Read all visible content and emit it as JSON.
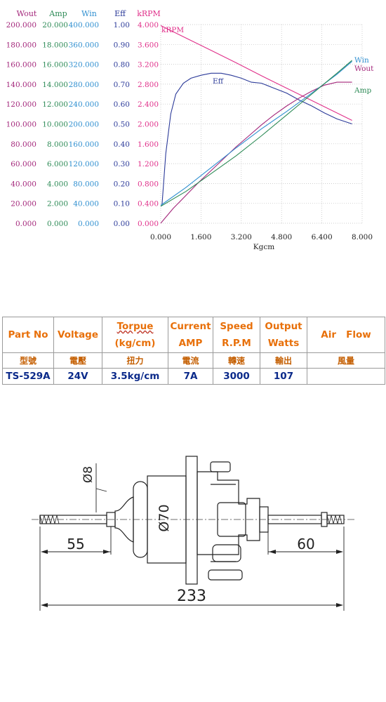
{
  "chart_data": {
    "type": "line",
    "xlabel": "Kgcm",
    "x_ticks": [
      "0.000",
      "1.600",
      "3.200",
      "4.800",
      "6.400",
      "8.000"
    ],
    "xlim": [
      0,
      8
    ],
    "grid": true,
    "axes": [
      {
        "label": "Wout",
        "color": "#a3267a",
        "ticks": [
          "0.000",
          "20.000",
          "40.000",
          "60.000",
          "80.000",
          "100.000",
          "120.000",
          "140.000",
          "160.000",
          "180.000",
          "200.000"
        ],
        "ylim": [
          0,
          200
        ]
      },
      {
        "label": "Amp",
        "color": "#2e8b57",
        "ticks": [
          "0.000",
          "2.000",
          "4.000",
          "6.000",
          "8.000",
          "10.000",
          "12.000",
          "14.000",
          "16.000",
          "18.000",
          "20.000"
        ],
        "ylim": [
          0,
          20
        ]
      },
      {
        "label": "Win",
        "color": "#2f8fd0",
        "ticks": [
          "0.000",
          "40.000",
          "80.000",
          "120.000",
          "160.000",
          "200.000",
          "240.000",
          "280.000",
          "320.000",
          "360.000",
          "400.000"
        ],
        "ylim": [
          0,
          400
        ]
      },
      {
        "label": "Eff",
        "color": "#2b3a99",
        "ticks": [
          "0.00",
          "0.10",
          "0.20",
          "0.30",
          "0.40",
          "0.50",
          "0.60",
          "0.70",
          "0.80",
          "0.90",
          "1.00"
        ],
        "ylim": [
          0,
          1
        ]
      },
      {
        "label": "kRPM",
        "color": "#e0308a",
        "ticks": [
          "0.000",
          "0.400",
          "0.800",
          "1.200",
          "1.600",
          "2.000",
          "2.400",
          "2.800",
          "3.200",
          "3.600",
          "4.000"
        ],
        "ylim": [
          0,
          4
        ]
      }
    ],
    "series": [
      {
        "name": "kRPM",
        "color": "#e0308a",
        "axis": 4,
        "x": [
          0,
          1,
          2,
          3,
          4,
          5,
          6,
          7,
          7.6
        ],
        "y": [
          3.98,
          3.73,
          3.48,
          3.23,
          2.97,
          2.72,
          2.47,
          2.22,
          2.07
        ]
      },
      {
        "name": "Eff",
        "color": "#2b3a99",
        "axis": 3,
        "x": [
          0.05,
          0.2,
          0.4,
          0.6,
          0.9,
          1.2,
          1.6,
          2.0,
          2.4,
          2.8,
          3.2,
          3.6,
          4.0,
          4.5,
          5.0,
          5.5,
          6.0,
          6.5,
          7.0,
          7.6
        ],
        "y": [
          0.09,
          0.35,
          0.55,
          0.65,
          0.705,
          0.73,
          0.745,
          0.755,
          0.755,
          0.745,
          0.73,
          0.71,
          0.705,
          0.68,
          0.655,
          0.62,
          0.59,
          0.555,
          0.525,
          0.5
        ]
      },
      {
        "name": "Wout",
        "color": "#a3267a",
        "axis": 0,
        "x": [
          0,
          0.5,
          1,
          1.5,
          2,
          2.5,
          3,
          3.5,
          4,
          4.5,
          5,
          5.5,
          6,
          6.5,
          7,
          7.6
        ],
        "y": [
          0,
          15,
          28,
          41,
          53,
          65,
          77,
          88,
          99,
          109,
          118,
          126,
          133,
          139,
          142,
          142
        ]
      },
      {
        "name": "Win",
        "color": "#2f8fd0",
        "axis": 2,
        "x": [
          0,
          1,
          2,
          3,
          4,
          5,
          6,
          7,
          7.6
        ],
        "y": [
          36,
          72,
          112,
          152,
          190,
          225,
          262,
          300,
          326
        ]
      },
      {
        "name": "Amp",
        "color": "#2e8b57",
        "axis": 1,
        "x": [
          0,
          1,
          2,
          3,
          4,
          5,
          6,
          7,
          7.6
        ],
        "y": [
          1.7,
          3.2,
          5.0,
          6.8,
          8.8,
          10.9,
          13.0,
          15.1,
          16.4
        ]
      }
    ]
  },
  "table": {
    "headers": [
      {
        "line1": "Part No",
        "line2": ""
      },
      {
        "line1": "Voltage",
        "line2": ""
      },
      {
        "line1": "Torpue",
        "line2": "(kg/cm)"
      },
      {
        "line1": "Current",
        "line2": "AMP"
      },
      {
        "line1": "Speed",
        "line2": "R.P.M"
      },
      {
        "line1": "Output",
        "line2": "Watts"
      },
      {
        "line1": "Air   Flow",
        "line2": ""
      }
    ],
    "chinese": [
      "型號",
      "電壓",
      "扭力",
      "電流",
      "轉速",
      "輸出",
      "風量"
    ],
    "values": [
      "TS-529A",
      "24V",
      "3.5kg/cm",
      "7A",
      "3000",
      "107",
      ""
    ]
  },
  "drawing": {
    "dim_total": "233",
    "dim_left": "55",
    "dim_right": "60",
    "dia_shaft": "Ø8",
    "dia_body": "Ø70"
  }
}
